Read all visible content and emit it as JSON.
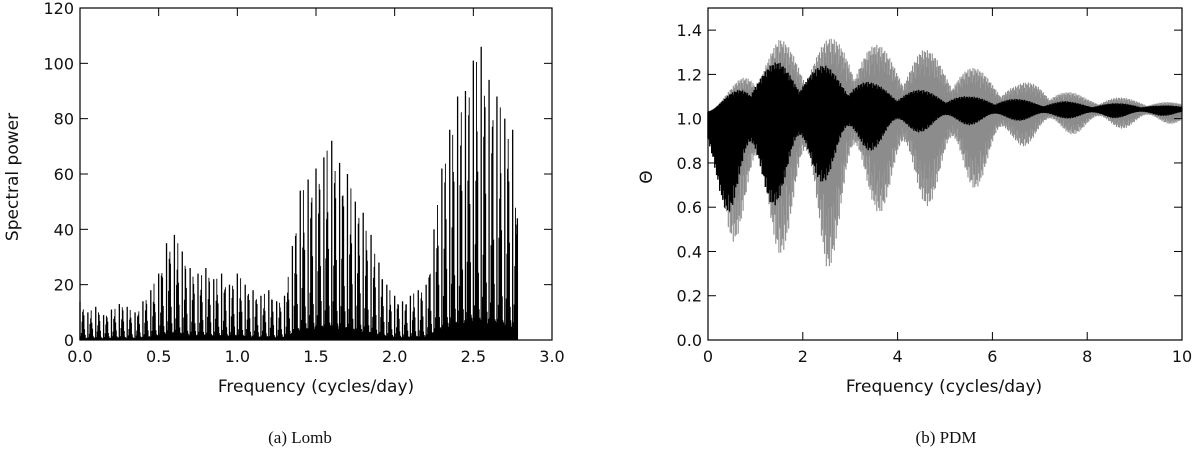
{
  "figure": {
    "caption_a": "(a) Lomb",
    "caption_b": "(b) PDM"
  },
  "chart_data": [
    {
      "id": "lomb",
      "type": "line",
      "xlabel": "Frequency (cycles/day)",
      "ylabel": "Spectral power",
      "xlim": [
        0,
        3.0
      ],
      "ylim": [
        0,
        120
      ],
      "xticks": [
        "0.0",
        "0.5",
        "1.0",
        "1.5",
        "2.0",
        "2.5",
        "3.0"
      ],
      "yticks": [
        "0",
        "20",
        "40",
        "60",
        "80",
        "100",
        "120"
      ],
      "grid": false,
      "series": [
        {
          "color": "#000000",
          "x": [
            0.0,
            0.05,
            0.1,
            0.15,
            0.2,
            0.25,
            0.3,
            0.35,
            0.4,
            0.45,
            0.5,
            0.55,
            0.6,
            0.65,
            0.7,
            0.75,
            0.8,
            0.85,
            0.9,
            0.95,
            1.0,
            1.05,
            1.1,
            1.15,
            1.2,
            1.25,
            1.3,
            1.35,
            1.4,
            1.45,
            1.5,
            1.55,
            1.6,
            1.65,
            1.7,
            1.75,
            1.8,
            1.85,
            1.9,
            1.95,
            2.0,
            2.05,
            2.1,
            2.15,
            2.2,
            2.25,
            2.3,
            2.35,
            2.4,
            2.45,
            2.5,
            2.55,
            2.6,
            2.65,
            2.7,
            2.75,
            2.78
          ],
          "y": [
            14,
            10,
            12,
            9,
            11,
            13,
            12,
            10,
            14,
            18,
            24,
            35,
            38,
            32,
            26,
            24,
            26,
            22,
            24,
            20,
            24,
            20,
            18,
            16,
            18,
            14,
            16,
            34,
            54,
            58,
            62,
            66,
            72,
            64,
            60,
            50,
            46,
            38,
            28,
            20,
            16,
            14,
            16,
            18,
            20,
            40,
            62,
            76,
            88,
            90,
            101,
            106,
            94,
            88,
            80,
            76,
            44
          ]
        }
      ]
    },
    {
      "id": "pdm",
      "type": "area",
      "xlabel": "Frequency (cycles/day)",
      "ylabel": "Θ",
      "xlim": [
        0,
        10
      ],
      "ylim": [
        0,
        1.5
      ],
      "xticks": [
        "0",
        "2",
        "4",
        "6",
        "8",
        "10"
      ],
      "yticks": [
        "0.0",
        "0.2",
        "0.4",
        "0.6",
        "0.8",
        "1.0",
        "1.2",
        "1.4"
      ],
      "grid": false,
      "series": [
        {
          "color": "#8c8c8c",
          "x": [
            0.0,
            0.5,
            1.0,
            1.5,
            2.0,
            2.5,
            3.0,
            3.5,
            4.0,
            4.5,
            5.0,
            5.5,
            6.0,
            6.5,
            7.0,
            7.5,
            8.0,
            8.5,
            9.0,
            9.5,
            10.0
          ],
          "upper": [
            1.02,
            1.14,
            1.28,
            1.36,
            1.32,
            1.36,
            1.38,
            1.34,
            1.3,
            1.32,
            1.28,
            1.24,
            1.2,
            1.16,
            1.17,
            1.13,
            1.1,
            1.1,
            1.09,
            1.08,
            1.07
          ],
          "lower": [
            0.68,
            0.45,
            0.35,
            0.38,
            0.45,
            0.3,
            0.5,
            0.58,
            0.55,
            0.6,
            0.62,
            0.66,
            0.74,
            0.86,
            0.9,
            0.92,
            0.94,
            0.95,
            0.96,
            0.97,
            0.98
          ]
        },
        {
          "color": "#000000",
          "x": [
            0.0,
            0.5,
            1.0,
            1.5,
            2.0,
            2.5,
            3.0,
            3.5,
            4.0,
            4.5,
            5.0,
            5.5,
            6.0,
            6.5,
            7.0,
            7.5,
            8.0,
            8.5,
            9.0,
            9.5,
            10.0
          ],
          "upper": [
            1.02,
            1.12,
            1.22,
            1.26,
            1.24,
            1.24,
            1.2,
            1.16,
            1.14,
            1.13,
            1.12,
            1.1,
            1.1,
            1.09,
            1.08,
            1.08,
            1.07,
            1.07,
            1.07,
            1.06,
            1.06
          ],
          "lower": [
            0.7,
            0.55,
            0.55,
            0.62,
            0.66,
            0.72,
            0.8,
            0.86,
            0.9,
            0.94,
            0.96,
            0.97,
            0.98,
            0.99,
            0.99,
            1.0,
            1.0,
            1.0,
            1.01,
            1.01,
            1.02
          ]
        }
      ]
    }
  ]
}
